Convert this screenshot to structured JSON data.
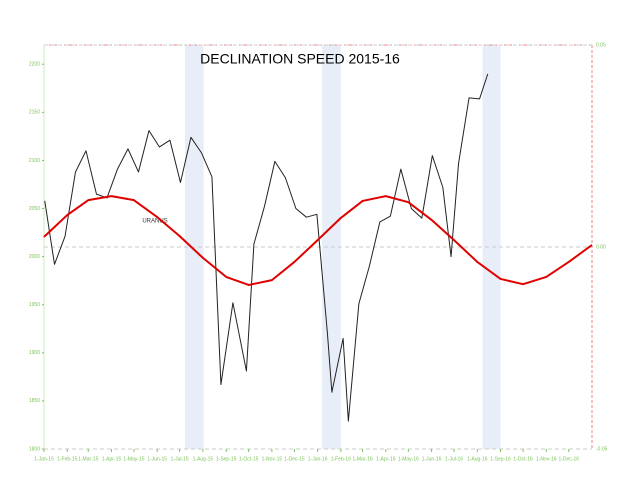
{
  "chart_data": {
    "type": "line",
    "title": "DECLINATION SPEED 2015-16",
    "annotation": "URANUS",
    "xlim": [
      "2015-01-01",
      "2017-01-01"
    ],
    "xticks": [
      {
        "value": "2015-01-01",
        "label": "1-Jan-15"
      },
      {
        "value": "2015-02-01",
        "label": "1-Feb-15"
      },
      {
        "value": "2015-03-01",
        "label": "1-Mar-15"
      },
      {
        "value": "2015-04-01",
        "label": "1-Apr-15"
      },
      {
        "value": "2015-05-01",
        "label": "1-May-15"
      },
      {
        "value": "2015-06-01",
        "label": "1-Jun-15"
      },
      {
        "value": "2015-07-01",
        "label": "1-Jul-15"
      },
      {
        "value": "2015-08-01",
        "label": "1-Aug-15"
      },
      {
        "value": "2015-09-01",
        "label": "1-Sep-15"
      },
      {
        "value": "2015-10-01",
        "label": "1-Oct-15"
      },
      {
        "value": "2015-11-01",
        "label": "1-Nov-15"
      },
      {
        "value": "2015-12-01",
        "label": "1-Dec-15"
      },
      {
        "value": "2016-01-01",
        "label": "1-Jan-16"
      },
      {
        "value": "2016-02-01",
        "label": "1-Feb-16"
      },
      {
        "value": "2016-03-01",
        "label": "1-Mar-16"
      },
      {
        "value": "2016-04-01",
        "label": "1-Apr-16"
      },
      {
        "value": "2016-05-01",
        "label": "1-May-16"
      },
      {
        "value": "2016-06-01",
        "label": "1-Jun-16"
      },
      {
        "value": "2016-07-01",
        "label": "1-Jul-16"
      },
      {
        "value": "2016-08-01",
        "label": "1-Aug-16"
      },
      {
        "value": "2016-09-01",
        "label": "1-Sep-16"
      },
      {
        "value": "2016-10-01",
        "label": "1-Oct-16"
      },
      {
        "value": "2016-11-01",
        "label": "1-Nov-16"
      },
      {
        "value": "2016-12-01",
        "label": "1-Dec-16"
      }
    ],
    "ylim": [
      1800,
      2220
    ],
    "yticks": [
      1800,
      1850,
      1900,
      1950,
      2000,
      2050,
      2100,
      2150,
      2200
    ],
    "y2lim": [
      -0.05,
      0.05
    ],
    "y2ticks": [
      -0.05,
      {
        "value": 0,
        "label": "0.00"
      },
      0.05
    ],
    "highlights": [
      [
        "2015-07-08",
        "2015-08-02"
      ],
      [
        "2016-01-07",
        "2016-02-01"
      ],
      [
        "2016-08-08",
        "2016-09-01"
      ]
    ],
    "highlight_color": "#e8eef8",
    "series": [
      {
        "color": "#222222",
        "x": [
          "2015-01-02",
          "2015-01-15",
          "2015-01-29",
          "2015-02-12",
          "2015-02-26",
          "2015-03-12",
          "2015-03-26",
          "2015-04-09",
          "2015-04-23",
          "2015-05-07",
          "2015-05-21",
          "2015-06-04",
          "2015-06-18",
          "2015-07-02",
          "2015-07-16",
          "2015-07-30",
          "2015-08-13",
          "2015-08-25",
          "2015-09-10",
          "2015-09-28",
          "2015-10-08",
          "2015-10-22",
          "2015-11-05",
          "2015-11-19",
          "2015-12-03",
          "2015-12-17",
          "2015-12-31",
          "2016-01-14",
          "2016-01-20",
          "2016-02-04",
          "2016-02-11",
          "2016-02-25",
          "2016-03-10",
          "2016-03-24",
          "2016-04-07",
          "2016-04-21",
          "2016-05-05",
          "2016-05-19",
          "2016-06-02",
          "2016-06-16",
          "2016-06-27",
          "2016-07-07",
          "2016-07-21",
          "2016-08-04",
          "2016-08-15"
        ],
        "values": [
          2058,
          1992,
          2021,
          2088,
          2110,
          2065,
          2061,
          2091,
          2112,
          2088,
          2131,
          2114,
          2121,
          2077,
          2124,
          2108,
          2083,
          1867,
          1952,
          1881,
          2013,
          2052,
          2099,
          2082,
          2050,
          2041,
          2044,
          1921,
          1859,
          1915,
          1829,
          1951,
          1990,
          2036,
          2042,
          2091,
          2050,
          2040,
          2105,
          2072,
          2000,
          2097,
          2165,
          2164,
          2190
        ]
      },
      {
        "color": "#e00000",
        "axis": "y2",
        "x": [
          "2015-01-01",
          "2015-02-01",
          "2015-03-01",
          "2015-04-01",
          "2015-05-01",
          "2015-06-01",
          "2015-07-01",
          "2015-08-01",
          "2015-09-01",
          "2015-10-01",
          "2015-11-01",
          "2015-12-01",
          "2016-01-01",
          "2016-02-01",
          "2016-03-01",
          "2016-04-01",
          "2016-05-01",
          "2016-06-01",
          "2016-07-01",
          "2016-08-01",
          "2016-09-01",
          "2016-10-01",
          "2016-11-01",
          "2016-12-01",
          "2017-01-01"
        ],
        "values": [
          0.0025,
          0.0079,
          0.0116,
          0.0126,
          0.0116,
          0.0074,
          0.0027,
          -0.0027,
          -0.0074,
          -0.0094,
          -0.0082,
          -0.0037,
          0.0017,
          0.0072,
          0.0114,
          0.0126,
          0.0111,
          0.0067,
          0.0017,
          -0.0037,
          -0.0079,
          -0.0092,
          -0.0074,
          -0.0037,
          0.0005
        ]
      }
    ]
  }
}
